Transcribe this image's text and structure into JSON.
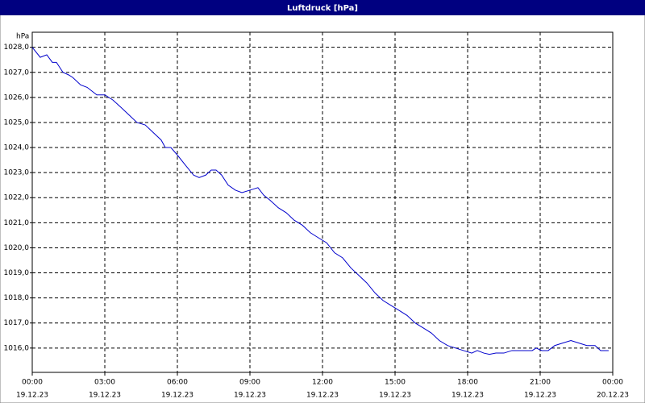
{
  "chart_data": {
    "type": "line",
    "title": "Luftdruck [hPa]",
    "y_label": "hPa",
    "x": [
      0,
      0.33,
      0.6,
      0.83,
      1,
      1.27,
      1.5,
      1.67,
      2,
      2.27,
      2.67,
      3,
      3.33,
      3.67,
      4,
      4.33,
      4.67,
      5,
      5.33,
      5.5,
      5.73,
      6,
      6.33,
      6.67,
      6.9,
      7.17,
      7.4,
      7.6,
      7.83,
      8.1,
      8.4,
      8.67,
      9,
      9.33,
      9.57,
      9.83,
      10.17,
      10.5,
      10.83,
      11.17,
      11.5,
      11.83,
      12.17,
      12.5,
      12.83,
      13.17,
      13.5,
      13.83,
      14.17,
      14.5,
      14.83,
      15.17,
      15.5,
      15.83,
      16.17,
      16.5,
      16.83,
      17.17,
      17.5,
      17.83,
      18.17,
      18.4,
      18.67,
      18.9,
      19.17,
      19.5,
      19.83,
      20.33,
      20.67,
      20.83,
      21.07,
      21.33,
      21.6,
      21.93,
      22.27,
      22.6,
      22.93,
      23.27,
      23.5,
      23.83
    ],
    "series": [
      {
        "name": "Luftdruck",
        "color": "#0000cc",
        "values": [
          1028.0,
          1027.6,
          1027.7,
          1027.4,
          1027.4,
          1027.0,
          1026.9,
          1026.8,
          1026.5,
          1026.4,
          1026.1,
          1026.1,
          1025.9,
          1025.6,
          1025.3,
          1025.0,
          1024.9,
          1024.6,
          1024.3,
          1024.0,
          1024.0,
          1023.7,
          1023.3,
          1022.9,
          1022.8,
          1022.9,
          1023.1,
          1023.1,
          1022.9,
          1022.5,
          1022.3,
          1022.2,
          1022.3,
          1022.4,
          1022.1,
          1021.9,
          1021.6,
          1021.4,
          1021.1,
          1020.9,
          1020.6,
          1020.4,
          1020.2,
          1019.8,
          1019.6,
          1019.2,
          1018.9,
          1018.6,
          1018.2,
          1017.9,
          1017.7,
          1017.5,
          1017.3,
          1017.0,
          1016.8,
          1016.6,
          1016.3,
          1016.1,
          1016.0,
          1015.9,
          1015.8,
          1015.9,
          1015.8,
          1015.75,
          1015.8,
          1015.8,
          1015.9,
          1015.9,
          1015.9,
          1016.0,
          1015.9,
          1015.9,
          1016.1,
          1016.2,
          1016.3,
          1016.2,
          1016.1,
          1016.1,
          1015.9,
          1015.9
        ]
      }
    ],
    "xlim": [
      0,
      24
    ],
    "xticks": [
      {
        "value": 0,
        "label": "00:00",
        "date": "19.12.23"
      },
      {
        "value": 3,
        "label": "03:00",
        "date": "19.12.23"
      },
      {
        "value": 6,
        "label": "06:00",
        "date": "19.12.23"
      },
      {
        "value": 9,
        "label": "09:00",
        "date": "19.12.23"
      },
      {
        "value": 12,
        "label": "12:00",
        "date": "19.12.23"
      },
      {
        "value": 15,
        "label": "15:00",
        "date": "19.12.23"
      },
      {
        "value": 18,
        "label": "18:00",
        "date": "19.12.23"
      },
      {
        "value": 21,
        "label": "21:00",
        "date": "19.12.23"
      },
      {
        "value": 24,
        "label": "00:00",
        "date": "20.12.23"
      }
    ],
    "ylim": [
      1015.03,
      1028.6
    ],
    "yticks": [
      {
        "value": 1016,
        "label": "1016,0"
      },
      {
        "value": 1017,
        "label": "1017,0"
      },
      {
        "value": 1018,
        "label": "1018,0"
      },
      {
        "value": 1019,
        "label": "1019,0"
      },
      {
        "value": 1020,
        "label": "1020,0"
      },
      {
        "value": 1021,
        "label": "1021,0"
      },
      {
        "value": 1022,
        "label": "1022,0"
      },
      {
        "value": 1023,
        "label": "1023,0"
      },
      {
        "value": 1024,
        "label": "1024,0"
      },
      {
        "value": 1025,
        "label": "1025,0"
      },
      {
        "value": 1026,
        "label": "1026,0"
      },
      {
        "value": 1027,
        "label": "1027,0"
      },
      {
        "value": 1028,
        "label": "1028,0"
      }
    ],
    "grid": true
  }
}
